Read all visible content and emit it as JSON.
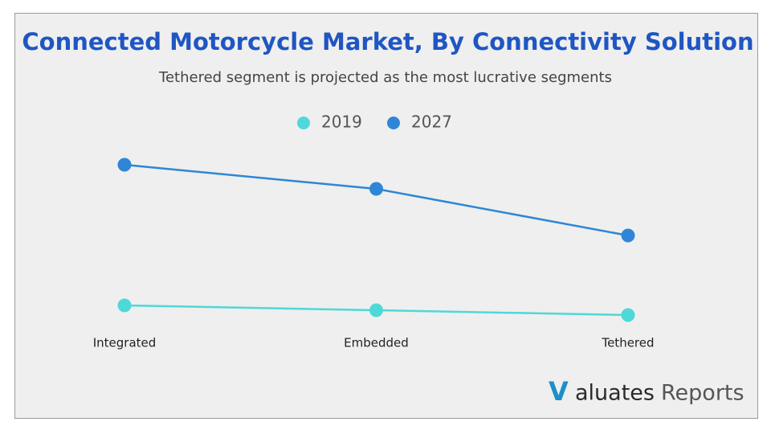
{
  "chart_data": {
    "type": "line",
    "title": "Connected Motorcycle Market, By Connectivity Solution",
    "subtitle": "Tethered segment is projected as the most lucrative segments",
    "categories": [
      "Integrated",
      "Embedded",
      "Tethered"
    ],
    "series": [
      {
        "name": "2019",
        "color": "#4fd8d8",
        "values": [
          40,
          34,
          28
        ]
      },
      {
        "name": "2027",
        "color": "#2f86d6",
        "values": [
          215,
          185,
          127
        ]
      }
    ],
    "legend": "top",
    "logo": {
      "mark": "V",
      "brand": "aluates",
      "suffix": "Reports"
    }
  }
}
